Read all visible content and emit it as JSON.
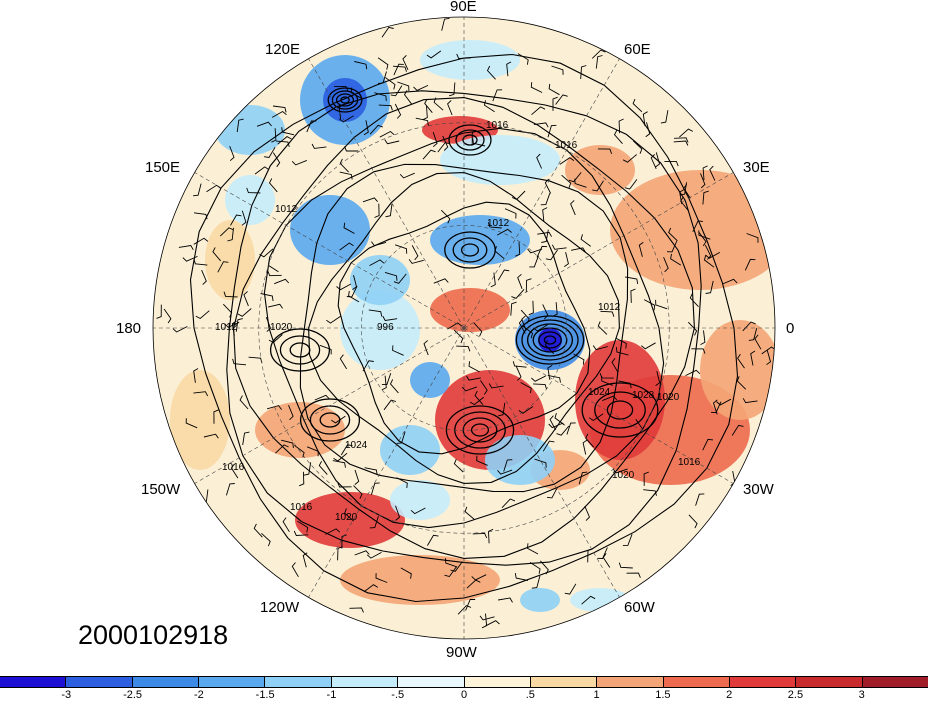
{
  "map": {
    "date_label": "2000102918",
    "longitude_labels": [
      "90E",
      "60E",
      "30E",
      "0",
      "30W",
      "60W",
      "90W",
      "120W",
      "150W",
      "180",
      "150E",
      "120E"
    ],
    "contour_labels": [
      "1016",
      "1012",
      "1012",
      "1012",
      "1016",
      "1020",
      "996",
      "1024",
      "1028",
      "1020",
      "1016",
      "1020",
      "1024",
      "1016",
      "1020",
      "1016",
      "1012"
    ]
  },
  "colorbar": {
    "ticks": [
      "-3",
      "-2.5",
      "-2",
      "-1.5",
      "-1",
      "-.5",
      "0",
      ".5",
      "1",
      "1.5",
      "2",
      "2.5",
      "3"
    ],
    "colors": [
      "#1e0fd4",
      "#2b5fe0",
      "#3d89e6",
      "#5aa9ef",
      "#8fd0f6",
      "#c4ecfb",
      "#e8f8fd",
      "#fdf3d8",
      "#f8d9a4",
      "#f4a577",
      "#ed6a4e",
      "#e03a3a",
      "#c82a2e",
      "#a01c28"
    ]
  }
}
